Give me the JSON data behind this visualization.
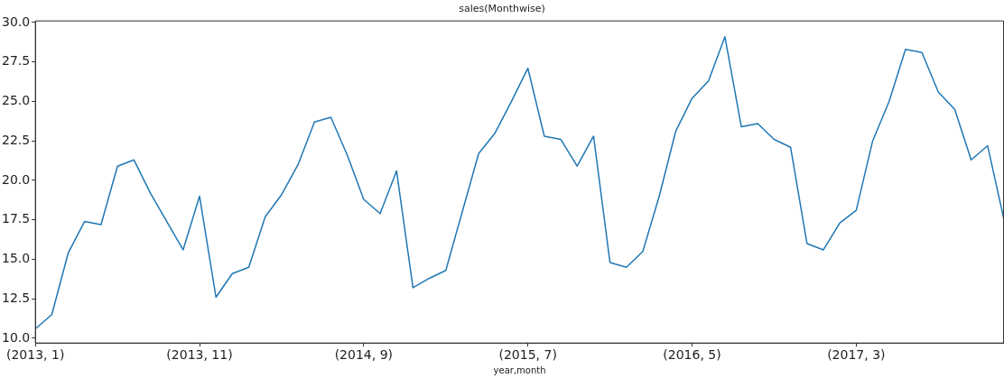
{
  "chart_data": {
    "type": "line",
    "title": "sales(Monthwise)",
    "xlabel": "year,month",
    "categories": [
      "(2013, 1)",
      null,
      null,
      null,
      null,
      null,
      null,
      null,
      null,
      null,
      "(2013, 11)",
      null,
      null,
      null,
      null,
      null,
      null,
      null,
      null,
      null,
      "(2014, 9)",
      null,
      null,
      null,
      null,
      null,
      null,
      null,
      null,
      null,
      "(2015, 7)",
      null,
      null,
      null,
      null,
      null,
      null,
      null,
      null,
      null,
      "(2016, 5)",
      null,
      null,
      null,
      null,
      null,
      null,
      null,
      null,
      null,
      "(2017, 3)",
      null,
      null,
      null,
      null,
      null,
      null,
      null,
      null,
      null
    ],
    "series": [
      {
        "color": "#1f77b4",
        "values": [
          10.6,
          11.5,
          15.4,
          17.4,
          17.2,
          20.9,
          21.3,
          19.2,
          17.4,
          15.6,
          19.0,
          12.6,
          14.1,
          14.5,
          17.7,
          19.1,
          21.0,
          23.7,
          24.0,
          21.6,
          18.8,
          17.9,
          20.6,
          13.2,
          13.8,
          14.3,
          18.0,
          21.7,
          23.0,
          25.0,
          27.1,
          22.8,
          22.6,
          20.9,
          22.8,
          14.8,
          14.5,
          15.5,
          19.0,
          23.1,
          25.2,
          26.3,
          29.1,
          23.4,
          23.6,
          22.6,
          22.1,
          16.0,
          15.6,
          17.3,
          18.1,
          22.5,
          25.0,
          28.3,
          28.1,
          25.6,
          24.5,
          21.3,
          22.2,
          17.5
        ]
      }
    ],
    "ylim": [
      9.7,
      30.1
    ],
    "yticks": [
      {
        "value": 10,
        "label": "10.0"
      },
      {
        "value": 12.5,
        "label": "12.5"
      },
      {
        "value": 15,
        "label": "15.0"
      },
      {
        "value": 17.5,
        "label": "17.5"
      },
      {
        "value": 20,
        "label": "20.0"
      },
      {
        "value": 22.5,
        "label": "22.5"
      },
      {
        "value": 25,
        "label": "25.0"
      },
      {
        "value": 27.5,
        "label": "27.5"
      },
      {
        "value": 30,
        "label": "30.0"
      }
    ],
    "grid": false,
    "legend": false,
    "marker": "none",
    "line_style": "solid"
  }
}
